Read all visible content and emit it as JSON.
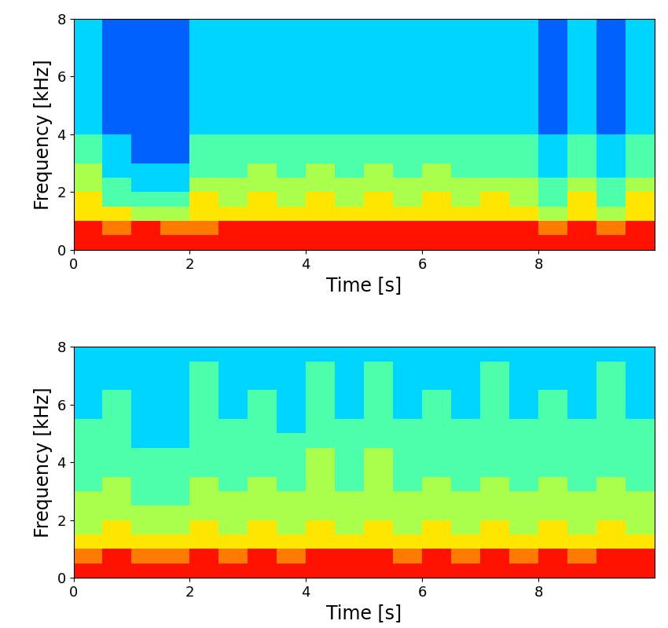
{
  "chart_data": [
    {
      "type": "heatmap",
      "x_label": "Time [s]",
      "y_label": "Frequency [kHz]",
      "xlim": [
        0,
        10
      ],
      "ylim": [
        0,
        8
      ],
      "xticks": [
        0,
        2,
        4,
        6,
        8
      ],
      "yticks": [
        0,
        2,
        4,
        6,
        8
      ],
      "x_edges": [
        0,
        0.5,
        1,
        1.5,
        2,
        2.5,
        3,
        3.5,
        4,
        4.5,
        5,
        5.5,
        6,
        6.5,
        7,
        7.5,
        8,
        8.5,
        9,
        9.5,
        10
      ],
      "y_edges": [
        0,
        0.5,
        1,
        1.5,
        2,
        2.5,
        3,
        3.5,
        4,
        4.5,
        5,
        5.5,
        6,
        6.5,
        7,
        7.5,
        8
      ],
      "color_range": [
        0,
        9
      ],
      "cells": [
        [
          8,
          8,
          8,
          8,
          8,
          8,
          8,
          8,
          8,
          8,
          8,
          8,
          8,
          8,
          8,
          8,
          8,
          8,
          8,
          8
        ],
        [
          8,
          7,
          8,
          7,
          7,
          8,
          8,
          8,
          8,
          8,
          8,
          8,
          8,
          8,
          8,
          8,
          7,
          8,
          7,
          8
        ],
        [
          6,
          6,
          5,
          5,
          6,
          6,
          6,
          6,
          6,
          6,
          6,
          6,
          6,
          6,
          6,
          6,
          5,
          6,
          5,
          6
        ],
        [
          6,
          4,
          4,
          4,
          6,
          5,
          6,
          5,
          6,
          5,
          6,
          5,
          6,
          5,
          6,
          5,
          4,
          6,
          4,
          6
        ],
        [
          5,
          4,
          3,
          3,
          5,
          5,
          5,
          5,
          5,
          5,
          5,
          5,
          5,
          5,
          5,
          5,
          4,
          5,
          4,
          5
        ],
        [
          5,
          3,
          3,
          3,
          4,
          4,
          5,
          4,
          5,
          4,
          5,
          4,
          5,
          4,
          4,
          4,
          3,
          4,
          3,
          4
        ],
        [
          4,
          3,
          2,
          2,
          4,
          4,
          4,
          4,
          4,
          4,
          4,
          4,
          4,
          4,
          4,
          4,
          3,
          4,
          3,
          4
        ],
        [
          4,
          3,
          2,
          2,
          4,
          4,
          4,
          4,
          4,
          4,
          4,
          4,
          4,
          4,
          4,
          4,
          3,
          4,
          3,
          4
        ],
        [
          3,
          2,
          2,
          2,
          3,
          3,
          3,
          3,
          3,
          3,
          3,
          3,
          3,
          3,
          3,
          3,
          2,
          3,
          2,
          3
        ],
        [
          3,
          2,
          2,
          2,
          3,
          3,
          3,
          3,
          3,
          3,
          3,
          3,
          3,
          3,
          3,
          3,
          2,
          3,
          2,
          3
        ],
        [
          3,
          2,
          2,
          2,
          3,
          3,
          3,
          3,
          3,
          3,
          3,
          3,
          3,
          3,
          3,
          3,
          2,
          3,
          2,
          3
        ],
        [
          3,
          2,
          2,
          2,
          3,
          3,
          3,
          3,
          3,
          3,
          3,
          3,
          3,
          3,
          3,
          3,
          2,
          3,
          2,
          3
        ],
        [
          3,
          2,
          2,
          2,
          3,
          3,
          3,
          3,
          3,
          3,
          3,
          3,
          3,
          3,
          3,
          3,
          2,
          3,
          2,
          3
        ],
        [
          3,
          2,
          2,
          2,
          3,
          3,
          3,
          3,
          3,
          3,
          3,
          3,
          3,
          3,
          3,
          3,
          2,
          3,
          2,
          3
        ],
        [
          3,
          2,
          2,
          2,
          3,
          3,
          3,
          3,
          3,
          3,
          3,
          3,
          3,
          3,
          3,
          3,
          2,
          3,
          2,
          3
        ],
        [
          3,
          2,
          2,
          2,
          3,
          3,
          3,
          3,
          3,
          3,
          3,
          3,
          3,
          3,
          3,
          3,
          2,
          3,
          2,
          3
        ]
      ]
    },
    {
      "type": "heatmap",
      "x_label": "Time [s]",
      "y_label": "Frequency [kHz]",
      "xlim": [
        0,
        10
      ],
      "ylim": [
        0,
        8
      ],
      "xticks": [
        0,
        2,
        4,
        6,
        8
      ],
      "yticks": [
        0,
        2,
        4,
        6,
        8
      ],
      "x_edges": [
        0,
        0.5,
        1,
        1.5,
        2,
        2.5,
        3,
        3.5,
        4,
        4.5,
        5,
        5.5,
        6,
        6.5,
        7,
        7.5,
        8,
        8.5,
        9,
        9.5,
        10
      ],
      "y_edges": [
        0,
        0.5,
        1,
        1.5,
        2,
        2.5,
        3,
        3.5,
        4,
        4.5,
        5,
        5.5,
        6,
        6.5,
        7,
        7.5,
        8
      ],
      "color_range": [
        0,
        9
      ],
      "cells": [
        [
          8,
          8,
          8,
          8,
          8,
          8,
          8,
          8,
          8,
          8,
          8,
          8,
          8,
          8,
          8,
          8,
          8,
          8,
          8,
          8
        ],
        [
          7,
          8,
          7,
          7,
          8,
          7,
          8,
          7,
          8,
          8,
          8,
          7,
          8,
          7,
          8,
          7,
          8,
          7,
          8,
          8
        ],
        [
          6,
          6,
          6,
          6,
          6,
          6,
          6,
          6,
          6,
          6,
          6,
          6,
          6,
          6,
          6,
          6,
          6,
          6,
          6,
          6
        ],
        [
          5,
          6,
          5,
          5,
          6,
          5,
          6,
          5,
          6,
          5,
          6,
          5,
          6,
          5,
          6,
          5,
          6,
          5,
          6,
          5
        ],
        [
          5,
          5,
          5,
          5,
          5,
          5,
          5,
          5,
          5,
          5,
          5,
          5,
          5,
          5,
          5,
          5,
          5,
          5,
          5,
          5
        ],
        [
          5,
          5,
          4,
          4,
          5,
          5,
          5,
          5,
          5,
          5,
          5,
          5,
          5,
          5,
          5,
          5,
          5,
          5,
          5,
          5
        ],
        [
          4,
          5,
          4,
          4,
          5,
          4,
          5,
          4,
          5,
          4,
          5,
          4,
          5,
          4,
          5,
          4,
          5,
          4,
          5,
          4
        ],
        [
          4,
          4,
          4,
          4,
          4,
          4,
          4,
          4,
          5,
          4,
          5,
          4,
          4,
          4,
          4,
          4,
          4,
          4,
          4,
          4
        ],
        [
          4,
          4,
          4,
          4,
          4,
          4,
          4,
          4,
          5,
          4,
          5,
          4,
          4,
          4,
          4,
          4,
          4,
          4,
          4,
          4
        ],
        [
          4,
          4,
          3,
          3,
          4,
          4,
          4,
          4,
          4,
          4,
          4,
          4,
          4,
          4,
          4,
          4,
          4,
          4,
          4,
          4
        ],
        [
          4,
          4,
          3,
          3,
          4,
          4,
          4,
          3,
          4,
          4,
          4,
          4,
          4,
          4,
          4,
          4,
          4,
          4,
          4,
          4
        ],
        [
          3,
          4,
          3,
          3,
          4,
          3,
          4,
          3,
          4,
          3,
          4,
          3,
          4,
          3,
          4,
          3,
          4,
          3,
          4,
          3
        ],
        [
          3,
          4,
          3,
          3,
          4,
          3,
          4,
          3,
          4,
          3,
          4,
          3,
          4,
          3,
          4,
          3,
          4,
          3,
          4,
          3
        ],
        [
          3,
          3,
          3,
          3,
          4,
          3,
          3,
          3,
          4,
          3,
          4,
          3,
          3,
          3,
          4,
          3,
          3,
          3,
          4,
          3
        ],
        [
          3,
          3,
          3,
          3,
          4,
          3,
          3,
          3,
          4,
          3,
          4,
          3,
          3,
          3,
          4,
          3,
          3,
          3,
          4,
          3
        ],
        [
          3,
          3,
          3,
          3,
          3,
          3,
          3,
          3,
          3,
          3,
          3,
          3,
          3,
          3,
          3,
          3,
          3,
          3,
          3,
          3
        ]
      ]
    }
  ]
}
